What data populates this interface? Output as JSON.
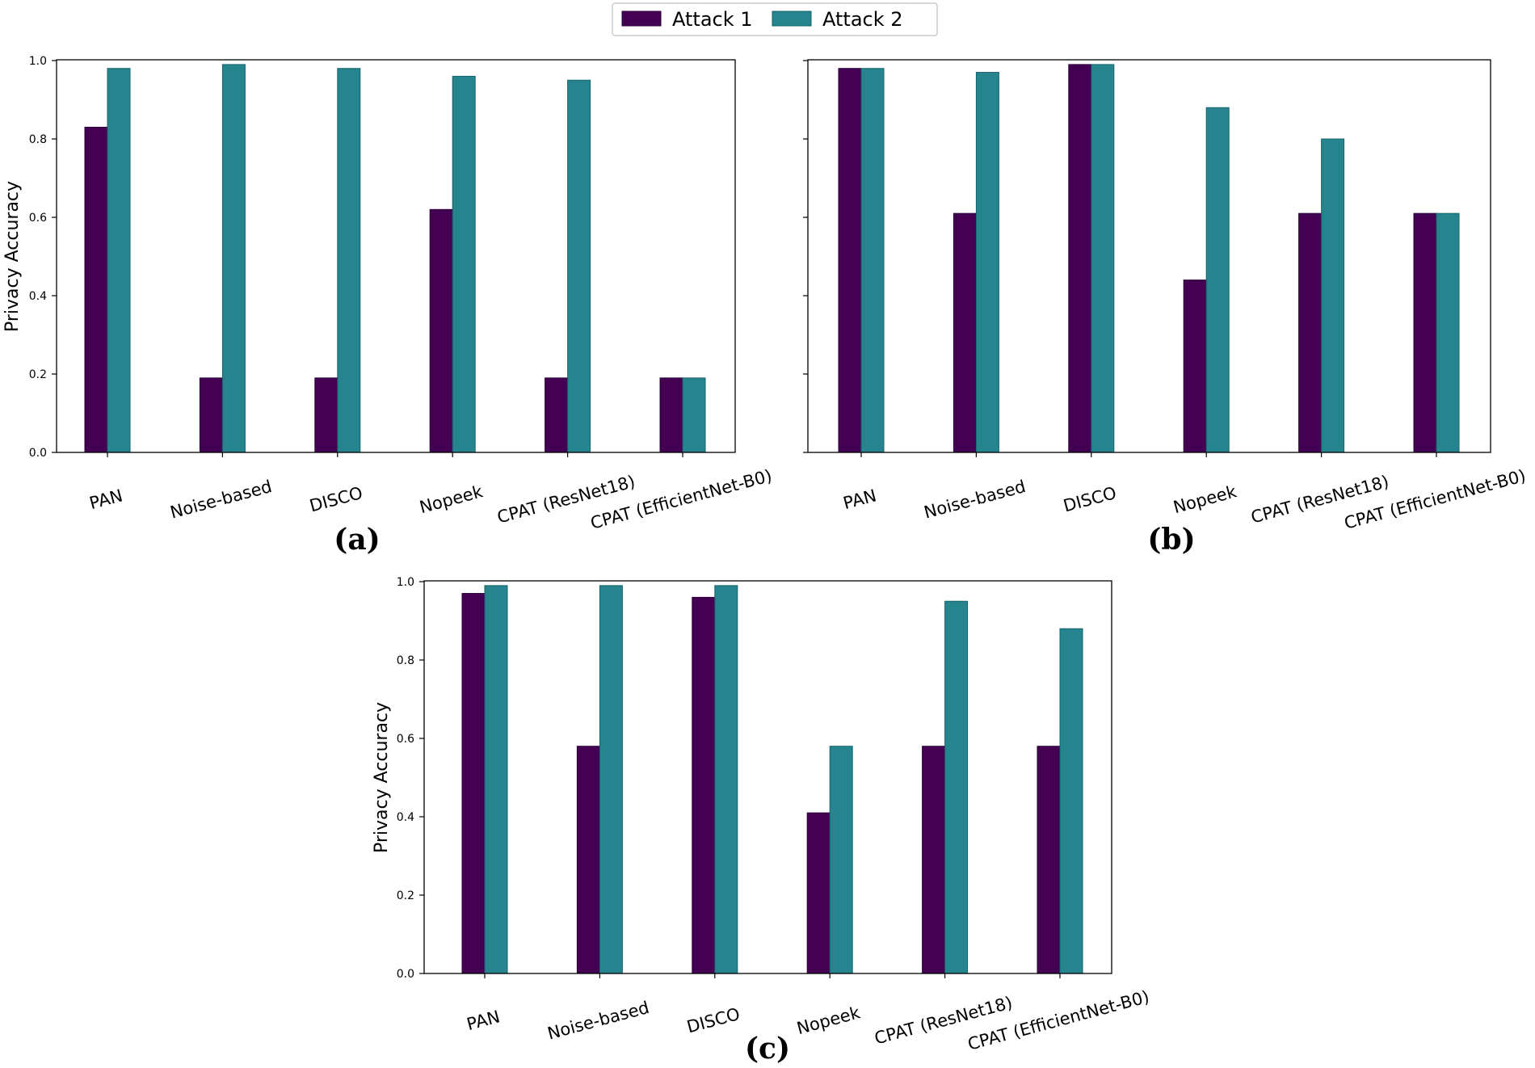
{
  "legend": {
    "placement": "top-center",
    "entries": [
      {
        "label": "Attack 1",
        "color": "#440154"
      },
      {
        "label": "Attack 2",
        "color": "#25848e"
      }
    ]
  },
  "chart_data": [
    {
      "type": "bar",
      "panel_label": "(a)",
      "ylabel": "Privacy Accuracy",
      "ylim": [
        0,
        1.0
      ],
      "yticks": [
        "0.0",
        "0.2",
        "0.4",
        "0.6",
        "0.8",
        "1.0"
      ],
      "categories": [
        "PAN",
        "Noise-based",
        "DISCO",
        "Nopeek",
        "CPAT (ResNet18)",
        "CPAT (EfficientNet-B0)"
      ],
      "series": [
        {
          "name": "Attack 1",
          "values": [
            0.83,
            0.19,
            0.19,
            0.62,
            0.19,
            0.19
          ]
        },
        {
          "name": "Attack 2",
          "values": [
            0.98,
            0.99,
            0.98,
            0.96,
            0.95,
            0.19
          ]
        }
      ]
    },
    {
      "type": "bar",
      "panel_label": "(b)",
      "ylabel": "",
      "ylim": [
        0,
        1.0
      ],
      "yticks": [
        "",
        "",
        "",
        "",
        "",
        ""
      ],
      "categories": [
        "PAN",
        "Noise-based",
        "DISCO",
        "Nopeek",
        "CPAT (ResNet18)",
        "CPAT (EfficientNet-B0)"
      ],
      "series": [
        {
          "name": "Attack 1",
          "values": [
            0.98,
            0.61,
            0.99,
            0.44,
            0.61,
            0.61
          ]
        },
        {
          "name": "Attack 2",
          "values": [
            0.98,
            0.97,
            0.99,
            0.88,
            0.8,
            0.61
          ]
        }
      ]
    },
    {
      "type": "bar",
      "panel_label": "(c)",
      "ylabel": "Privacy Accuracy",
      "ylim": [
        0,
        1.0
      ],
      "yticks": [
        "0.0",
        "0.2",
        "0.4",
        "0.6",
        "0.8",
        "1.0"
      ],
      "categories": [
        "PAN",
        "Noise-based",
        "DISCO",
        "Nopeek",
        "CPAT (ResNet18)",
        "CPAT (EfficientNet-B0)"
      ],
      "series": [
        {
          "name": "Attack 1",
          "values": [
            0.97,
            0.58,
            0.96,
            0.41,
            0.58,
            0.58
          ]
        },
        {
          "name": "Attack 2",
          "values": [
            0.99,
            0.99,
            0.99,
            0.58,
            0.95,
            0.88
          ]
        }
      ]
    }
  ]
}
